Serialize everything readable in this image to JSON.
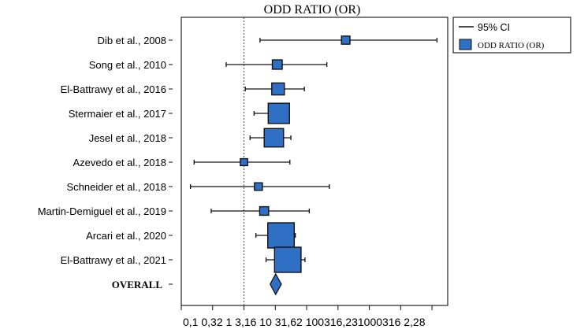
{
  "chart_data": {
    "type": "forest",
    "title": "ODD RATIO (OR)",
    "x_scale": "log10",
    "xlim": [
      0.1,
      1778.28
    ],
    "reference_line": 1,
    "ticks": [
      {
        "value": 0.1,
        "label": "0,1"
      },
      {
        "value": 0.316,
        "label": "0,32"
      },
      {
        "value": 1,
        "label": "1"
      },
      {
        "value": 3.162,
        "label": "3,16"
      },
      {
        "value": 10,
        "label": "10"
      },
      {
        "value": 31.62,
        "label": "31,62"
      },
      {
        "value": 100,
        "label": "100"
      },
      {
        "value": 316.23,
        "label": "316,23"
      },
      {
        "value": 1000,
        "label": "1000"
      },
      {
        "value": 3162.28,
        "label": "3162,28"
      }
    ],
    "tick_label_strip": "0,1   0,32    1     3,16   10   31,62 100316,231000316 2,28",
    "studies": [
      {
        "label": "Dib et al., 2008",
        "or": 42,
        "ci_low": 1.8,
        "ci_high": 1200,
        "weight": 0.5
      },
      {
        "label": "Song et al., 2010",
        "or": 3.4,
        "ci_low": 0.52,
        "ci_high": 21,
        "weight": 0.8
      },
      {
        "label": "El-Battrawy et al., 2016",
        "or": 3.5,
        "ci_low": 1.05,
        "ci_high": 9.2,
        "weight": 1.6
      },
      {
        "label": "Stermaier et al., 2017",
        "or": 3.6,
        "ci_low": 1.45,
        "ci_high": 5.2,
        "weight": 6.0
      },
      {
        "label": "Jesel et al., 2018",
        "or": 3.0,
        "ci_low": 1.25,
        "ci_high": 5.6,
        "weight": 4.8
      },
      {
        "label": "Azevedo et al., 2018",
        "or": 1.0,
        "ci_low": 0.16,
        "ci_high": 5.4,
        "weight": 0.3
      },
      {
        "label": "Schneider et al., 2018",
        "or": 1.7,
        "ci_low": 0.14,
        "ci_high": 23,
        "weight": 0.4
      },
      {
        "label": "Martin-Demiguel et al., 2019",
        "or": 2.1,
        "ci_low": 0.3,
        "ci_high": 11,
        "weight": 0.6
      },
      {
        "label": "Arcari et al., 2020",
        "or": 3.9,
        "ci_low": 1.55,
        "ci_high": 6.6,
        "weight": 10.0
      },
      {
        "label": "El-Battrawy et al., 2021",
        "or": 5.0,
        "ci_low": 2.25,
        "ci_high": 9.4,
        "weight": 10.0
      }
    ],
    "overall": {
      "label": "OVERALL",
      "or": 3.2,
      "ci_low": 2.62,
      "ci_high": 3.95
    },
    "legend": {
      "position": "top-right",
      "items": [
        {
          "kind": "line",
          "label": "95% CI"
        },
        {
          "kind": "box",
          "label": "ODD RATIO (OR)"
        }
      ]
    },
    "colors": {
      "box": "#2f6fc4",
      "stroke": "#111111",
      "reference": "#444444"
    }
  }
}
